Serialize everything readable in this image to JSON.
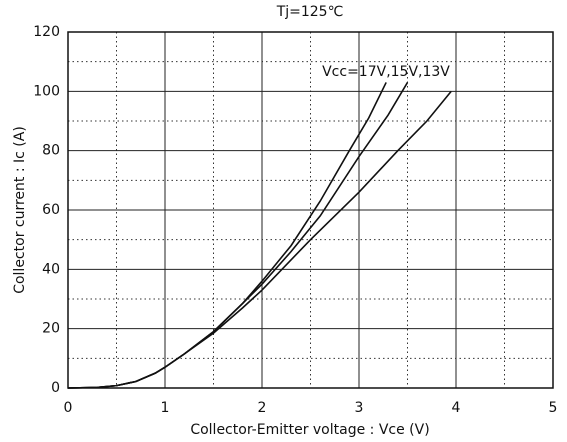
{
  "chart_data": {
    "type": "line",
    "title": "Tj=125℃",
    "x_label": "Collector-Emitter voltage : Vce (V)",
    "y_label": "Collector current : Ic (A)",
    "annotation": "Vcc=17V,15V,13V",
    "xlim": [
      0,
      5
    ],
    "xticks": [
      0,
      1,
      2,
      3,
      4,
      5
    ],
    "ylim": [
      0,
      120
    ],
    "yticks": [
      0,
      20,
      40,
      60,
      80,
      100,
      120
    ],
    "grid": true,
    "minor_grid": true,
    "series": [
      {
        "name": "17V",
        "color": "#111111",
        "x": [
          0,
          0.3,
          0.5,
          0.7,
          0.9,
          1.0,
          1.2,
          1.5,
          1.8,
          2.0,
          2.3,
          2.6,
          2.9,
          3.1,
          3.28
        ],
        "values": [
          0,
          0.2,
          0.8,
          2.2,
          5,
          7,
          11.5,
          19,
          28.5,
          36,
          48,
          63,
          80,
          91,
          103
        ]
      },
      {
        "name": "15V",
        "color": "#111111",
        "x": [
          0,
          0.3,
          0.5,
          0.7,
          0.9,
          1.0,
          1.2,
          1.5,
          1.8,
          2.0,
          2.3,
          2.6,
          3.0,
          3.3,
          3.5
        ],
        "values": [
          0,
          0.2,
          0.8,
          2.2,
          5,
          7,
          11.5,
          19,
          28.5,
          35,
          46,
          58,
          78,
          92,
          103
        ]
      },
      {
        "name": "13V",
        "color": "#111111",
        "x": [
          0,
          0.3,
          0.5,
          0.7,
          0.9,
          1.0,
          1.2,
          1.5,
          1.8,
          2.0,
          2.5,
          3.0,
          3.4,
          3.7,
          3.95
        ],
        "values": [
          0,
          0.2,
          0.8,
          2.2,
          5,
          7,
          11.5,
          18.5,
          27,
          33,
          50,
          66,
          80,
          90,
          100
        ]
      }
    ]
  }
}
